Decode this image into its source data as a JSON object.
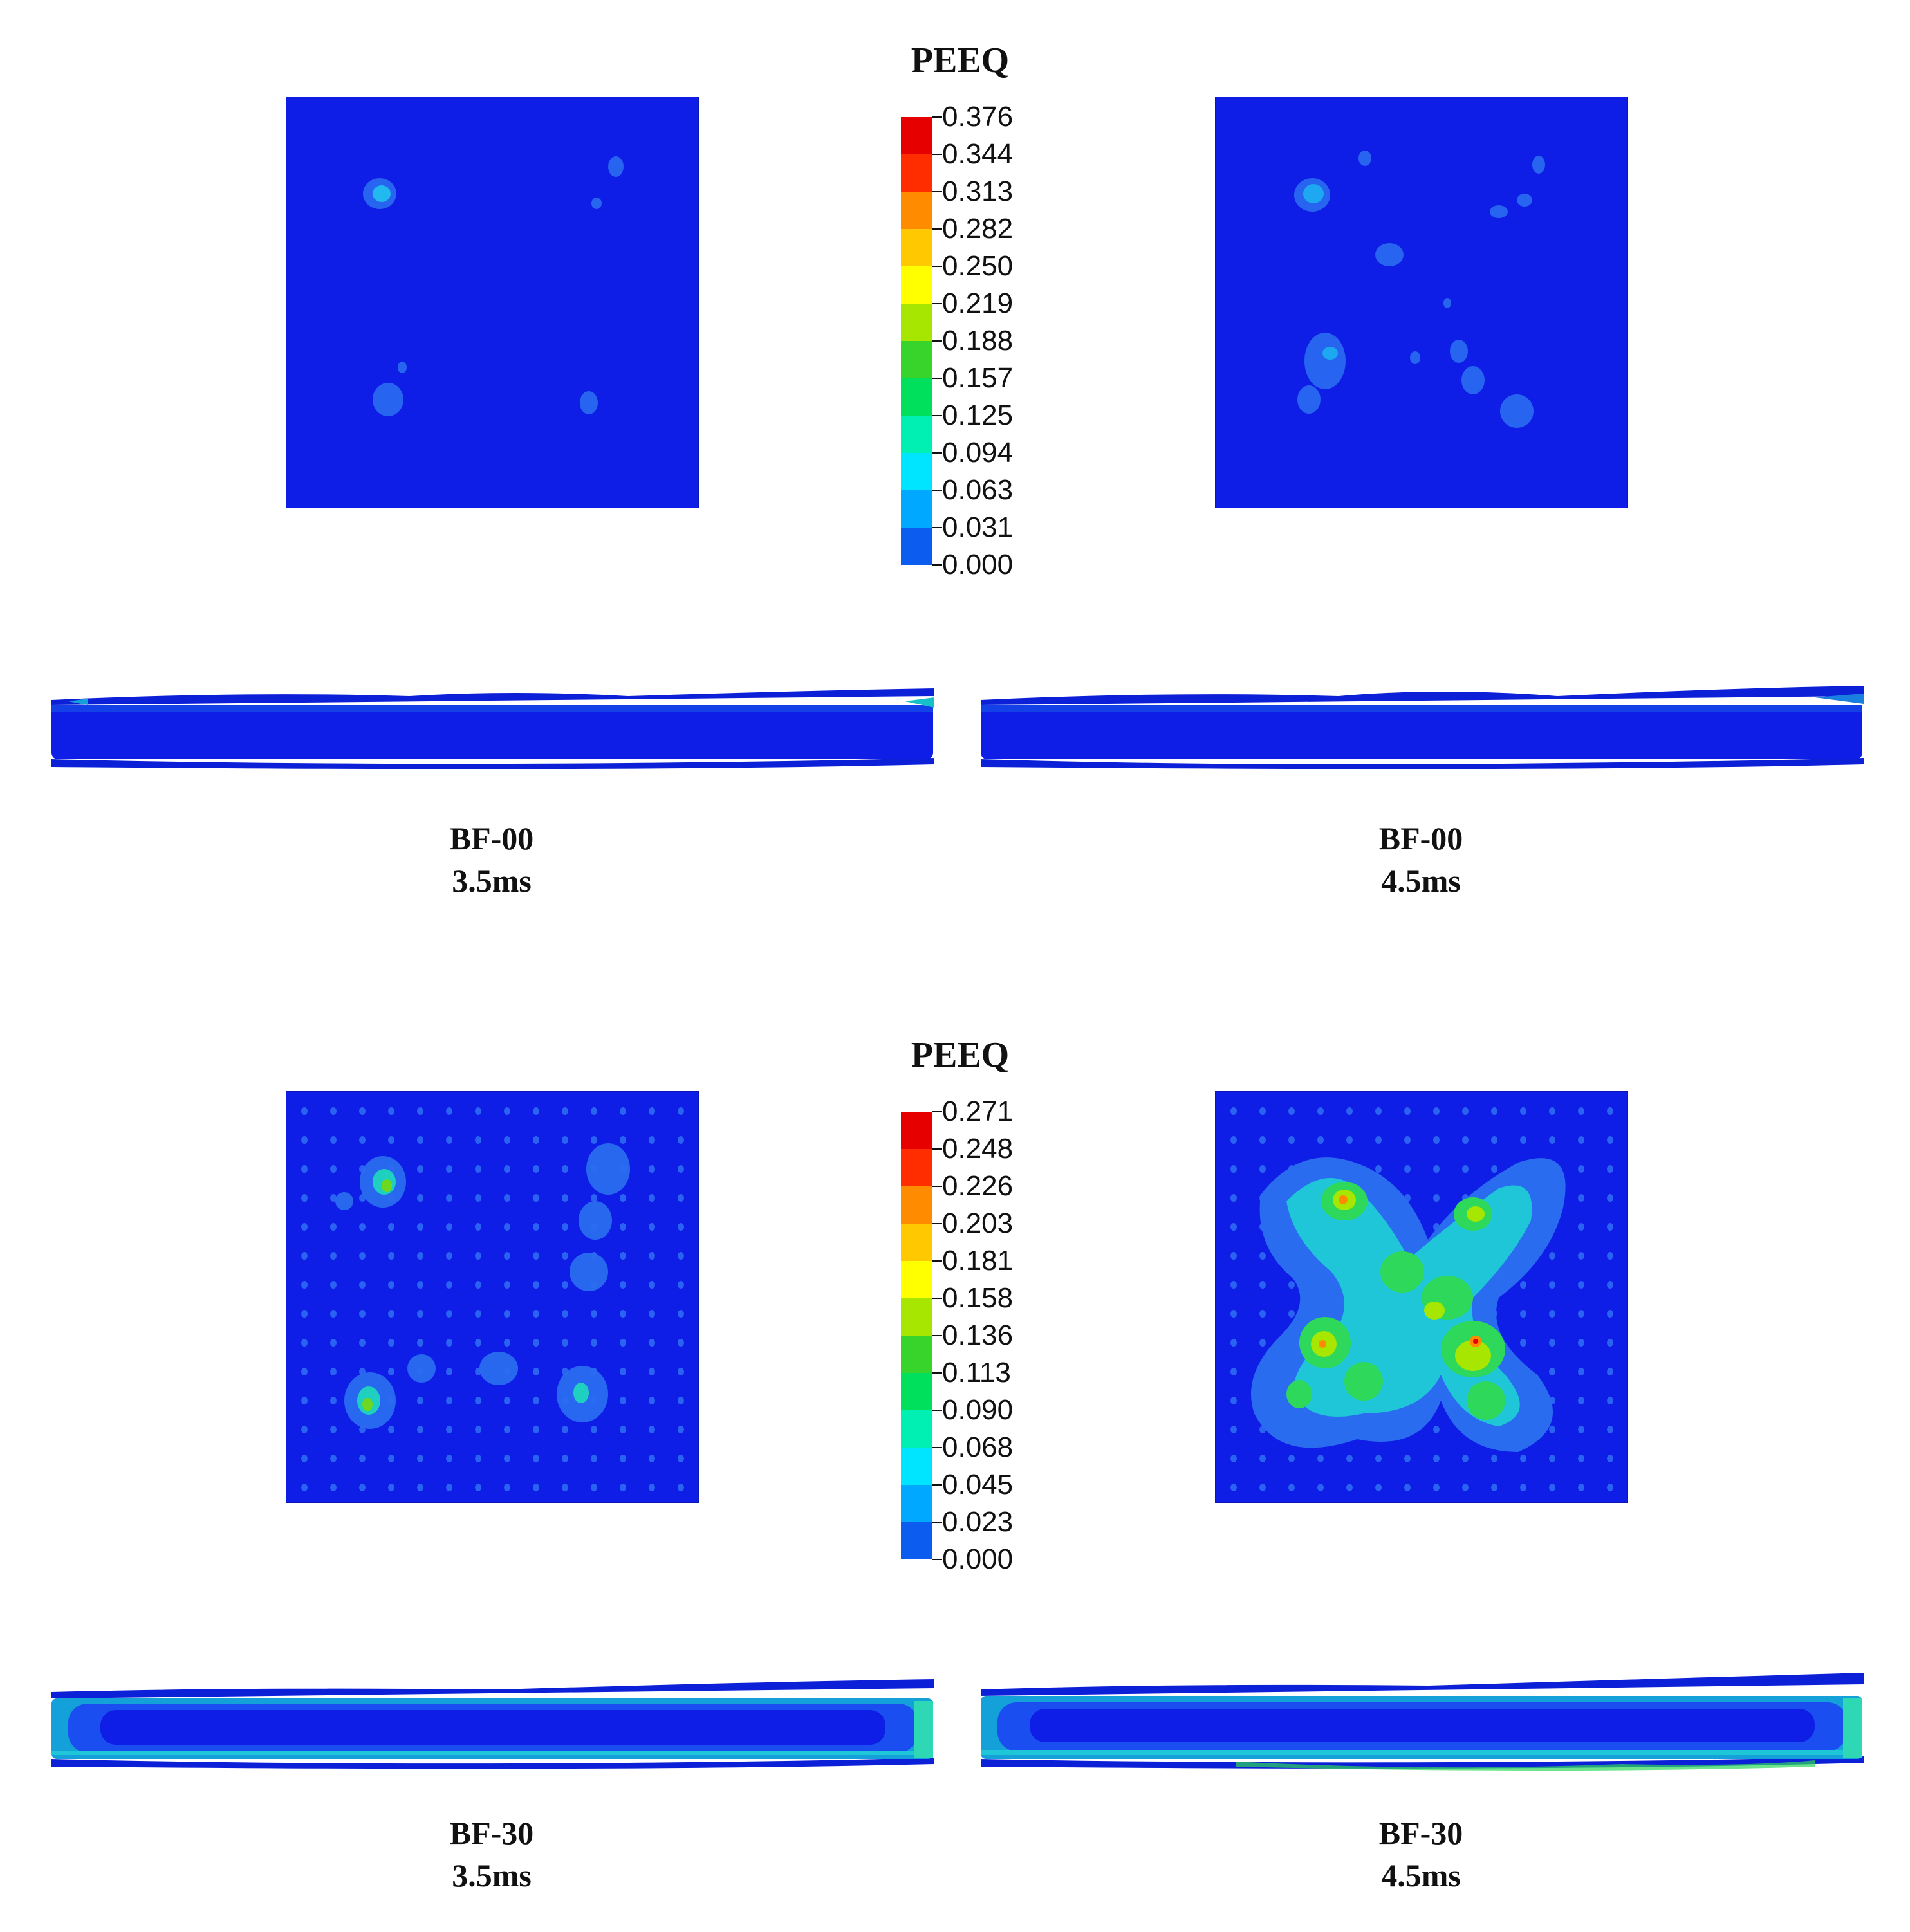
{
  "colormap": [
    "#0000ff",
    "#0d5cf0",
    "#00a8ff",
    "#00e5ff",
    "#00f0b4",
    "#00e05c",
    "#38d42c",
    "#a6e600",
    "#ffff00",
    "#ffc800",
    "#ff8c00",
    "#ff2d00",
    "#e60000"
  ],
  "legends": [
    {
      "title": "PEEQ",
      "labels": [
        "0.376",
        "0.344",
        "0.313",
        "0.282",
        "0.250",
        "0.219",
        "0.188",
        "0.157",
        "0.125",
        "0.094",
        "0.063",
        "0.031",
        "0.000"
      ]
    },
    {
      "title": "PEEQ",
      "labels": [
        "0.271",
        "0.248",
        "0.226",
        "0.203",
        "0.181",
        "0.158",
        "0.136",
        "0.113",
        "0.090",
        "0.068",
        "0.045",
        "0.023",
        "0.000"
      ]
    }
  ],
  "captions": [
    {
      "name": "BF-00",
      "time": "3.5ms"
    },
    {
      "name": "BF-00",
      "time": "4.5ms"
    },
    {
      "name": "BF-30",
      "time": "3.5ms"
    },
    {
      "name": "BF-30",
      "time": "4.5ms"
    }
  ]
}
